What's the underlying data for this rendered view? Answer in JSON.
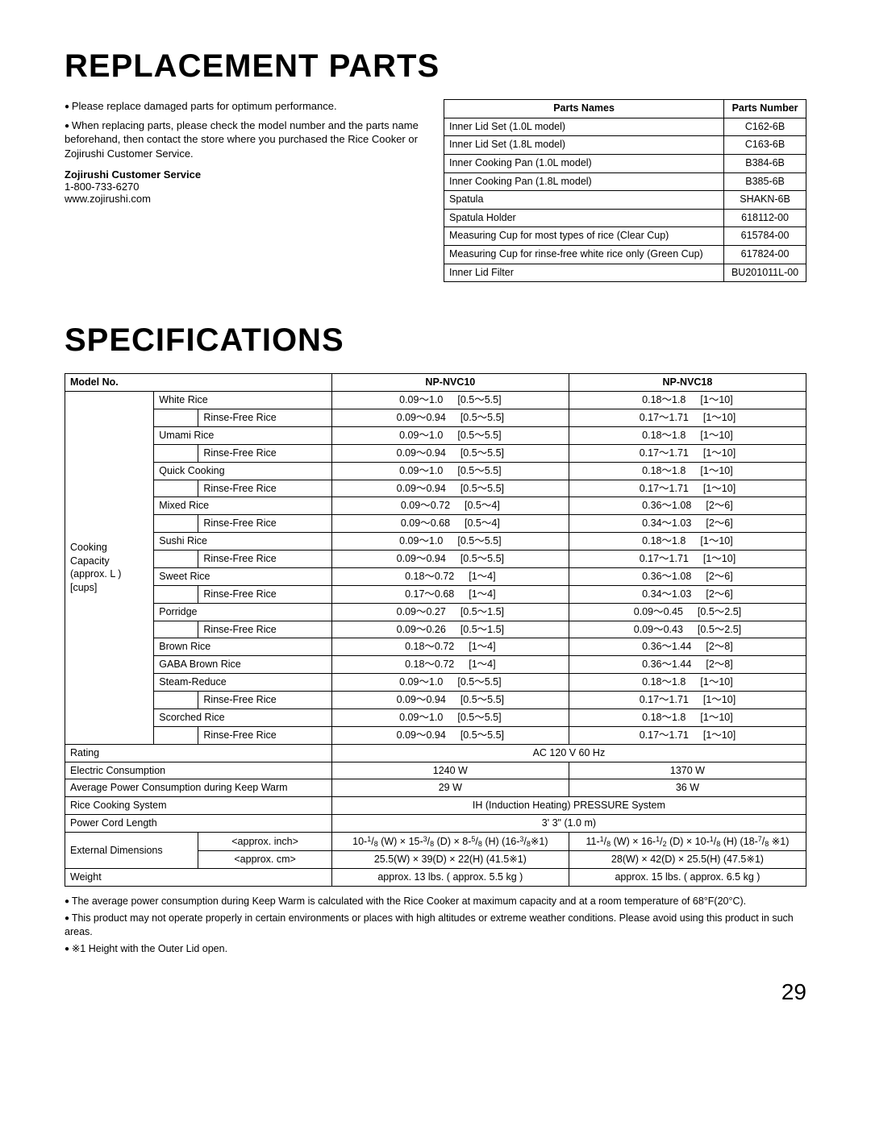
{
  "heading1": "REPLACEMENT PARTS",
  "intro": {
    "b1": "Please replace damaged parts for optimum performance.",
    "b2": "When replacing parts, please check the model number and the parts name beforehand, then contact the store where you purchased the Rice Cooker or Zojirushi Customer Service.",
    "csTitle": "Zojirushi Customer Service",
    "phone": "1-800-733-6270",
    "site": "www.zojirushi.com"
  },
  "partsHeader": {
    "name": "Parts Names",
    "num": "Parts Number"
  },
  "parts": [
    {
      "n": "Inner Lid Set (1.0L model)",
      "p": "C162-6B"
    },
    {
      "n": "Inner Lid Set (1.8L model)",
      "p": "C163-6B"
    },
    {
      "n": "Inner Cooking Pan (1.0L model)",
      "p": "B384-6B"
    },
    {
      "n": "Inner Cooking Pan (1.8L model)",
      "p": "B385-6B"
    },
    {
      "n": "Spatula",
      "p": "SHAKN-6B"
    },
    {
      "n": "Spatula Holder",
      "p": "618112-00"
    },
    {
      "n": "Measuring Cup for most types of rice (Clear Cup)",
      "p": "615784-00"
    },
    {
      "n": "Measuring Cup for rinse-free white rice only (Green Cup)",
      "p": "617824-00"
    },
    {
      "n": "Inner Lid Filter",
      "p": "BU201011L-00"
    }
  ],
  "heading2": "SPECIFICATIONS",
  "specHeader": {
    "model": "Model No.",
    "m1": "NP-NVC10",
    "m2": "NP-NVC18"
  },
  "capacityLabel": "Cooking Capacity (approx.  L) [cups]",
  "rows": [
    {
      "l2": "White Rice",
      "a1": "0.09～1.0",
      "a2": "[0.5～5.5]",
      "b1": "0.18～1.8",
      "b2": "[1～10]"
    },
    {
      "l2": "Rinse-Free Rice",
      "indent": true,
      "a1": "0.09～0.94",
      "a2": "[0.5～5.5]",
      "b1": "0.17～1.71",
      "b2": "[1～10]"
    },
    {
      "l2": "Umami Rice",
      "a1": "0.09～1.0",
      "a2": "[0.5～5.5]",
      "b1": "0.18～1.8",
      "b2": "[1～10]"
    },
    {
      "l2": "Rinse-Free Rice",
      "indent": true,
      "a1": "0.09～0.94",
      "a2": "[0.5～5.5]",
      "b1": "0.17～1.71",
      "b2": "[1～10]"
    },
    {
      "l2": "Quick Cooking",
      "a1": "0.09～1.0",
      "a2": "[0.5～5.5]",
      "b1": "0.18～1.8",
      "b2": "[1～10]"
    },
    {
      "l2": "Rinse-Free Rice",
      "indent": true,
      "a1": "0.09～0.94",
      "a2": "[0.5～5.5]",
      "b1": "0.17～1.71",
      "b2": "[1～10]"
    },
    {
      "l2": "Mixed Rice",
      "a1": "0.09～0.72",
      "a2": "[0.5～4]",
      "b1": "0.36～1.08",
      "b2": "[2～6]"
    },
    {
      "l2": "Rinse-Free Rice",
      "indent": true,
      "a1": "0.09～0.68",
      "a2": "[0.5～4]",
      "b1": "0.34～1.03",
      "b2": "[2～6]"
    },
    {
      "l2": "Sushi Rice",
      "a1": "0.09～1.0",
      "a2": "[0.5～5.5]",
      "b1": "0.18～1.8",
      "b2": "[1～10]"
    },
    {
      "l2": "Rinse-Free Rice",
      "indent": true,
      "a1": "0.09～0.94",
      "a2": "[0.5～5.5]",
      "b1": "0.17～1.71",
      "b2": "[1～10]"
    },
    {
      "l2": "Sweet Rice",
      "a1": "0.18～0.72",
      "a2": "[1～4]",
      "b1": "0.36～1.08",
      "b2": "[2～6]"
    },
    {
      "l2": "Rinse-Free Rice",
      "indent": true,
      "a1": "0.17～0.68",
      "a2": "[1～4]",
      "b1": "0.34～1.03",
      "b2": "[2～6]"
    },
    {
      "l2": "Porridge",
      "a1": "0.09～0.27",
      "a2": "[0.5～1.5]",
      "b1": "0.09～0.45",
      "b2": "[0.5～2.5]"
    },
    {
      "l2": "Rinse-Free Rice",
      "indent": true,
      "a1": "0.09～0.26",
      "a2": "[0.5～1.5]",
      "b1": "0.09～0.43",
      "b2": "[0.5～2.5]"
    },
    {
      "l2": "Brown Rice",
      "a1": "0.18～0.72",
      "a2": "[1～4]",
      "b1": "0.36～1.44",
      "b2": "[2～8]"
    },
    {
      "l2": "GABA Brown Rice",
      "a1": "0.18～0.72",
      "a2": "[1～4]",
      "b1": "0.36～1.44",
      "b2": "[2～8]"
    },
    {
      "l2": "Steam-Reduce",
      "a1": "0.09～1.0",
      "a2": "[0.5～5.5]",
      "b1": "0.18～1.8",
      "b2": "[1～10]"
    },
    {
      "l2": "Rinse-Free Rice",
      "indent": true,
      "a1": "0.09～0.94",
      "a2": "[0.5～5.5]",
      "b1": "0.17～1.71",
      "b2": "[1～10]"
    },
    {
      "l2": "Scorched Rice",
      "a1": "0.09～1.0",
      "a2": "[0.5～5.5]",
      "b1": "0.18～1.8",
      "b2": "[1～10]"
    },
    {
      "l2": "Rinse-Free Rice",
      "indent": true,
      "a1": "0.09～0.94",
      "a2": "[0.5～5.5]",
      "b1": "0.17～1.71",
      "b2": "[1～10]"
    }
  ],
  "simpleRows": {
    "rating": {
      "l": "Rating",
      "v": "AC 120 V     60 Hz"
    },
    "electric": {
      "l": "Electric Consumption",
      "v1": "1240 W",
      "v2": "1370 W"
    },
    "keepWarm": {
      "l": "Average Power Consumption during Keep Warm",
      "v1": "29 W",
      "v2": "36 W"
    },
    "system": {
      "l": "Rice Cooking System",
      "v": "IH (Induction Heating) PRESSURE System"
    },
    "cord": {
      "l": "Power Cord Length",
      "v": "3' 3\" (1.0 m)"
    },
    "dimLabel": "External Dimensions",
    "dimInchLabel": "<approx. inch>",
    "dimCmLabel": "<approx. cm>",
    "dimCm1": "25.5(W) × 39(D) × 22(H) (41.5※1)",
    "dimCm2": "28(W) × 42(D) × 25.5(H) (47.5※1)",
    "weight": {
      "l": "Weight",
      "v1": "approx. 13 lbs. ( approx. 5.5 kg )",
      "v2": "approx. 15 lbs. ( approx. 6.5 kg )"
    }
  },
  "notes": {
    "n1": "The average power consumption during Keep Warm is calculated with the Rice Cooker at maximum capacity and at a room temperature of 68°F(20°C).",
    "n2": "This product may not operate properly in certain environments or places with high altitudes or extreme weather conditions. Please avoid using this product in such areas.",
    "n3": "※1 Height with the Outer Lid open."
  },
  "pageNum": "29"
}
